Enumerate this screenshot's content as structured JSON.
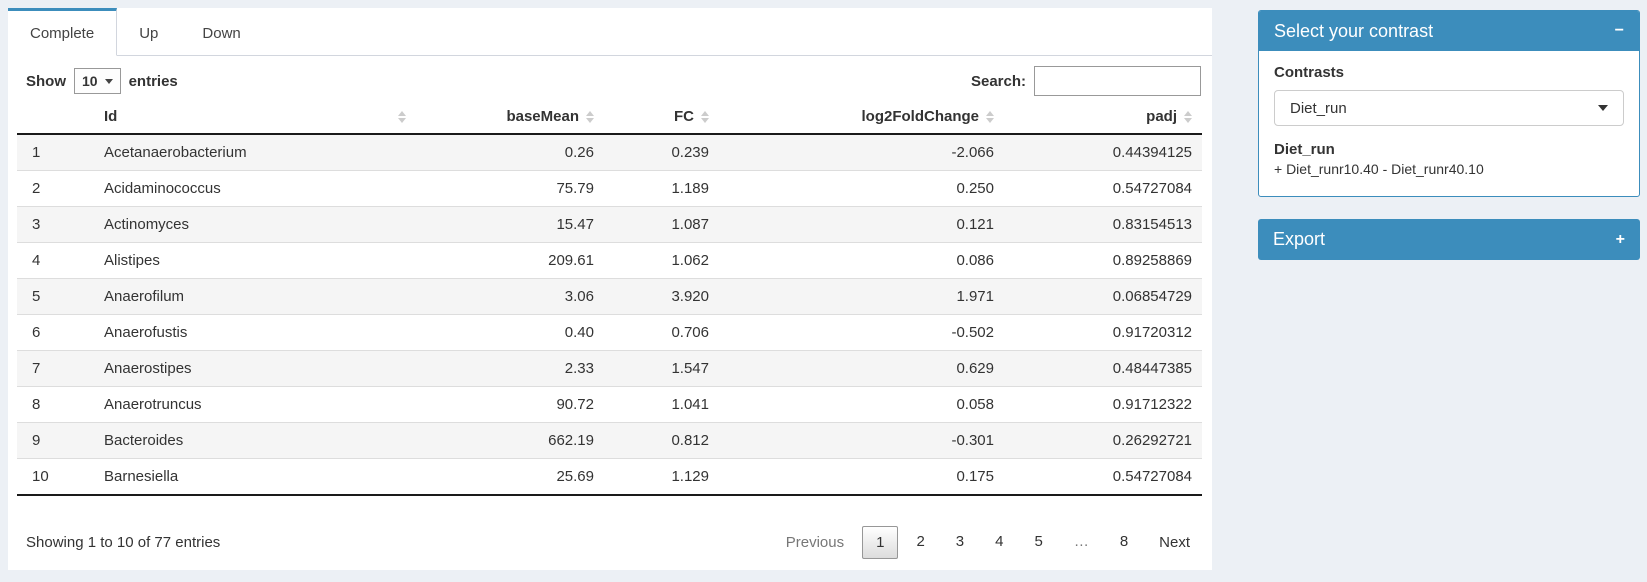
{
  "tabs": [
    {
      "label": "Complete",
      "active": true
    },
    {
      "label": "Up",
      "active": false
    },
    {
      "label": "Down",
      "active": false
    }
  ],
  "controls": {
    "show_label": "Show",
    "page_length": "10",
    "entries_label": "entries",
    "search_label": "Search:",
    "search_value": ""
  },
  "table": {
    "columns": [
      "",
      "Id",
      "baseMean",
      "FC",
      "log2FoldChange",
      "padj"
    ],
    "rows": [
      {
        "n": "1",
        "id": "Acetanaerobacterium",
        "baseMean": "0.26",
        "fc": "0.239",
        "log2fc": "-2.066",
        "padj": "0.44394125"
      },
      {
        "n": "2",
        "id": "Acidaminococcus",
        "baseMean": "75.79",
        "fc": "1.189",
        "log2fc": "0.250",
        "padj": "0.54727084"
      },
      {
        "n": "3",
        "id": "Actinomyces",
        "baseMean": "15.47",
        "fc": "1.087",
        "log2fc": "0.121",
        "padj": "0.83154513"
      },
      {
        "n": "4",
        "id": "Alistipes",
        "baseMean": "209.61",
        "fc": "1.062",
        "log2fc": "0.086",
        "padj": "0.89258869"
      },
      {
        "n": "5",
        "id": "Anaerofilum",
        "baseMean": "3.06",
        "fc": "3.920",
        "log2fc": "1.971",
        "padj": "0.06854729"
      },
      {
        "n": "6",
        "id": "Anaerofustis",
        "baseMean": "0.40",
        "fc": "0.706",
        "log2fc": "-0.502",
        "padj": "0.91720312"
      },
      {
        "n": "7",
        "id": "Anaerostipes",
        "baseMean": "2.33",
        "fc": "1.547",
        "log2fc": "0.629",
        "padj": "0.48447385"
      },
      {
        "n": "8",
        "id": "Anaerotruncus",
        "baseMean": "90.72",
        "fc": "1.041",
        "log2fc": "0.058",
        "padj": "0.91712322"
      },
      {
        "n": "9",
        "id": "Bacteroides",
        "baseMean": "662.19",
        "fc": "0.812",
        "log2fc": "-0.301",
        "padj": "0.26292721"
      },
      {
        "n": "10",
        "id": "Barnesiella",
        "baseMean": "25.69",
        "fc": "1.129",
        "log2fc": "0.175",
        "padj": "0.54727084"
      }
    ],
    "info": "Showing 1 to 10 of 77 entries"
  },
  "pagination": {
    "previous": "Previous",
    "pages": [
      "1",
      "2",
      "3",
      "4",
      "5",
      "…",
      "8"
    ],
    "current": "1",
    "next": "Next"
  },
  "contrast_panel": {
    "title": "Select your contrast",
    "collapse_icon": "−",
    "contrasts_label": "Contrasts",
    "selected_contrast": "Diet_run",
    "detail_title": "Diet_run",
    "detail_formula": "+ Diet_runr10.40 - Diet_runr40.10"
  },
  "export_panel": {
    "title": "Export",
    "expand_icon": "+"
  },
  "colors": {
    "accent": "#3c8dbc",
    "page_bg": "#ecf0f5"
  }
}
